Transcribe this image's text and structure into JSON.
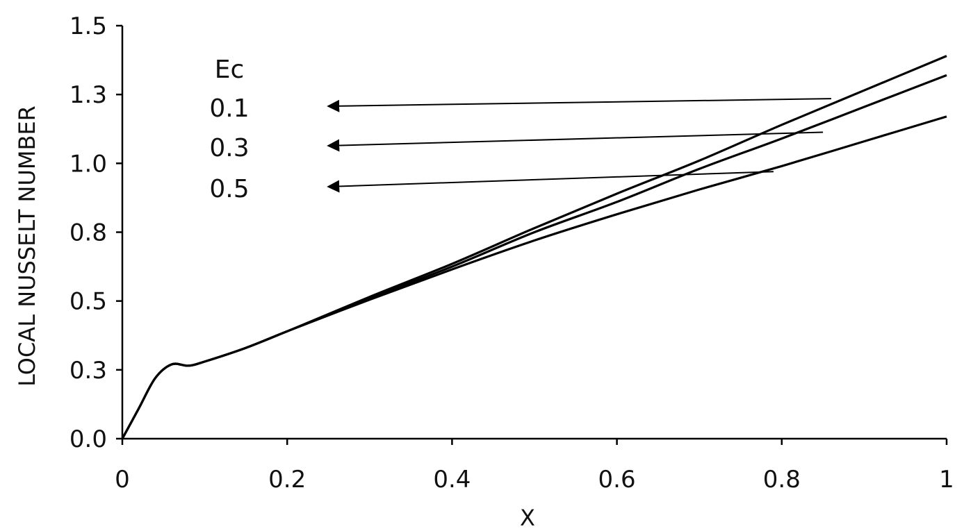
{
  "chart_data": {
    "type": "line",
    "title": "",
    "xlabel": "X",
    "ylabel": "LOCAL NUSSELT NUMBER",
    "xlim": [
      0,
      1
    ],
    "ylim": [
      0,
      1.5
    ],
    "x_ticks": [
      0,
      0.2,
      0.4,
      0.6,
      0.8,
      1
    ],
    "x_tick_labels": [
      "0",
      "0.2",
      "0.4",
      "0.6",
      "0.8",
      "1"
    ],
    "y_ticks": [
      0,
      0.25,
      0.5,
      0.75,
      1.0,
      1.25,
      1.5
    ],
    "y_tick_labels": [
      "0.0",
      "0.3",
      "0.5",
      "0.8",
      "1.0",
      "1.3",
      "1.5"
    ],
    "grid": false,
    "legend": {
      "title": "Ec",
      "placement": "top-left",
      "entries": [
        "0.1",
        "0.3",
        "0.5"
      ]
    },
    "x": [
      0,
      0.02,
      0.04,
      0.06,
      0.08,
      0.1,
      0.15,
      0.2,
      0.3,
      0.4,
      0.5,
      0.6,
      0.7,
      0.8,
      0.9,
      1.0
    ],
    "series": [
      {
        "name": "0.1",
        "values": [
          0,
          0.11,
          0.22,
          0.27,
          0.265,
          0.28,
          0.33,
          0.39,
          0.515,
          0.635,
          0.765,
          0.89,
          1.01,
          1.14,
          1.265,
          1.39
        ],
        "pointer_x": 0.86,
        "pointer_y": 1.235
      },
      {
        "name": "0.3",
        "values": [
          0,
          0.11,
          0.22,
          0.27,
          0.265,
          0.28,
          0.33,
          0.39,
          0.51,
          0.625,
          0.75,
          0.86,
          0.98,
          1.09,
          1.205,
          1.32
        ],
        "pointer_x": 0.85,
        "pointer_y": 1.113
      },
      {
        "name": "0.5",
        "values": [
          0,
          0.11,
          0.22,
          0.27,
          0.265,
          0.28,
          0.33,
          0.39,
          0.505,
          0.615,
          0.72,
          0.815,
          0.905,
          0.99,
          1.08,
          1.17
        ],
        "pointer_x": 0.79,
        "pointer_y": 0.97
      }
    ]
  }
}
